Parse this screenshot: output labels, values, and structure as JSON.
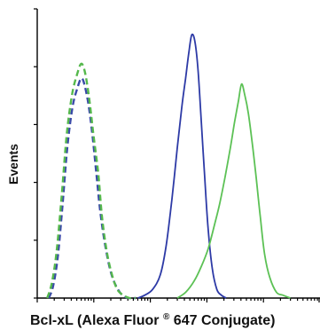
{
  "chart_data": {
    "type": "line",
    "xlabel_main": "Bcl-xL (Alexa Fluor",
    "xlabel_sup": "®",
    "xlabel_tail": " 647 Conjugate)",
    "ylabel": "Events",
    "xscale": "log",
    "xlim": [
      1,
      100000
    ],
    "ylim": [
      0,
      100
    ],
    "y_ticks": 5,
    "x_ticks_visible": true,
    "grid": false,
    "series": [
      {
        "color": "#3a4aa8",
        "dash": true,
        "x": [
          1.6,
          1.9,
          2.3,
          2.8,
          3.4,
          4.2,
          5.2,
          6.1,
          7.0,
          8.2,
          9.5,
          11,
          13,
          16,
          20,
          25,
          32,
          42,
          55
        ],
        "y": [
          0,
          4,
          14,
          32,
          52,
          66,
          73,
          76,
          73,
          66,
          56,
          44,
          30,
          18,
          9,
          4,
          1,
          0,
          0
        ]
      },
      {
        "color": "#55b84c",
        "dash": true,
        "x": [
          1.5,
          1.8,
          2.2,
          2.7,
          3.3,
          4.1,
          5.0,
          6.0,
          7.0,
          8.3,
          9.8,
          12,
          14,
          17,
          21,
          26,
          33,
          43,
          55
        ],
        "y": [
          0,
          5,
          16,
          35,
          56,
          70,
          77,
          81,
          78,
          69,
          57,
          43,
          28,
          16,
          8,
          3,
          1,
          0,
          0
        ]
      },
      {
        "color": "#2d3aa6",
        "dash": false,
        "x": [
          60,
          80,
          110,
          150,
          190,
          240,
          300,
          360,
          420,
          480,
          540,
          610,
          690,
          780,
          900,
          1050,
          1250,
          1500,
          1800,
          2200
        ],
        "y": [
          0,
          1,
          3,
          8,
          18,
          34,
          52,
          66,
          76,
          85,
          91,
          89,
          80,
          64,
          44,
          24,
          10,
          3,
          1,
          0
        ]
      },
      {
        "color": "#5cc155",
        "dash": false,
        "x": [
          300,
          420,
          600,
          800,
          1050,
          1350,
          1700,
          2100,
          2600,
          3100,
          3600,
          4100,
          4700,
          5400,
          6300,
          7400,
          8800,
          10500,
          13000,
          17000,
          22000,
          30000
        ],
        "y": [
          0,
          2,
          6,
          11,
          17,
          25,
          33,
          42,
          52,
          61,
          68,
          74,
          70,
          64,
          54,
          42,
          28,
          15,
          7,
          2,
          1,
          0
        ]
      }
    ]
  }
}
